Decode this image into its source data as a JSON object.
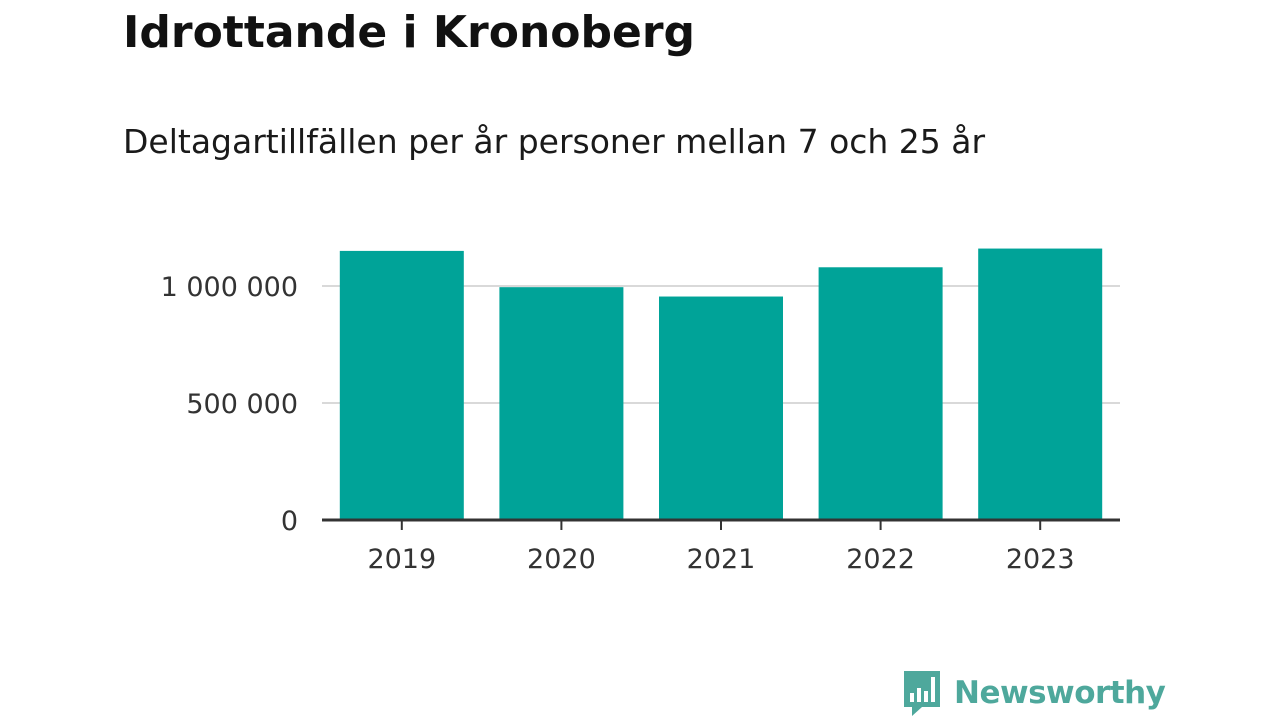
{
  "title": "Idrottande i Kronoberg",
  "subtitle": "Deltagartillfällen per år personer mellan 7 och 25 år",
  "brand": {
    "name": "Newsworthy",
    "icon": "bar-chart-speech-bubble-icon",
    "color": "#4ea89c"
  },
  "colors": {
    "bar": "#00a398",
    "axis": "#333333",
    "grid": "#d9d9d9",
    "tick_text": "#333333"
  },
  "chart_data": {
    "type": "bar",
    "categories": [
      "2019",
      "2020",
      "2021",
      "2022",
      "2023"
    ],
    "values": [
      1150000,
      995000,
      955000,
      1080000,
      1160000
    ],
    "ylim": [
      0,
      1300000
    ],
    "yticks": [
      0,
      500000,
      1000000
    ],
    "ytick_labels": [
      "0",
      "500 000",
      "1 000 000"
    ],
    "xlabel": "",
    "ylabel": "",
    "grid": true,
    "legend": "none"
  }
}
